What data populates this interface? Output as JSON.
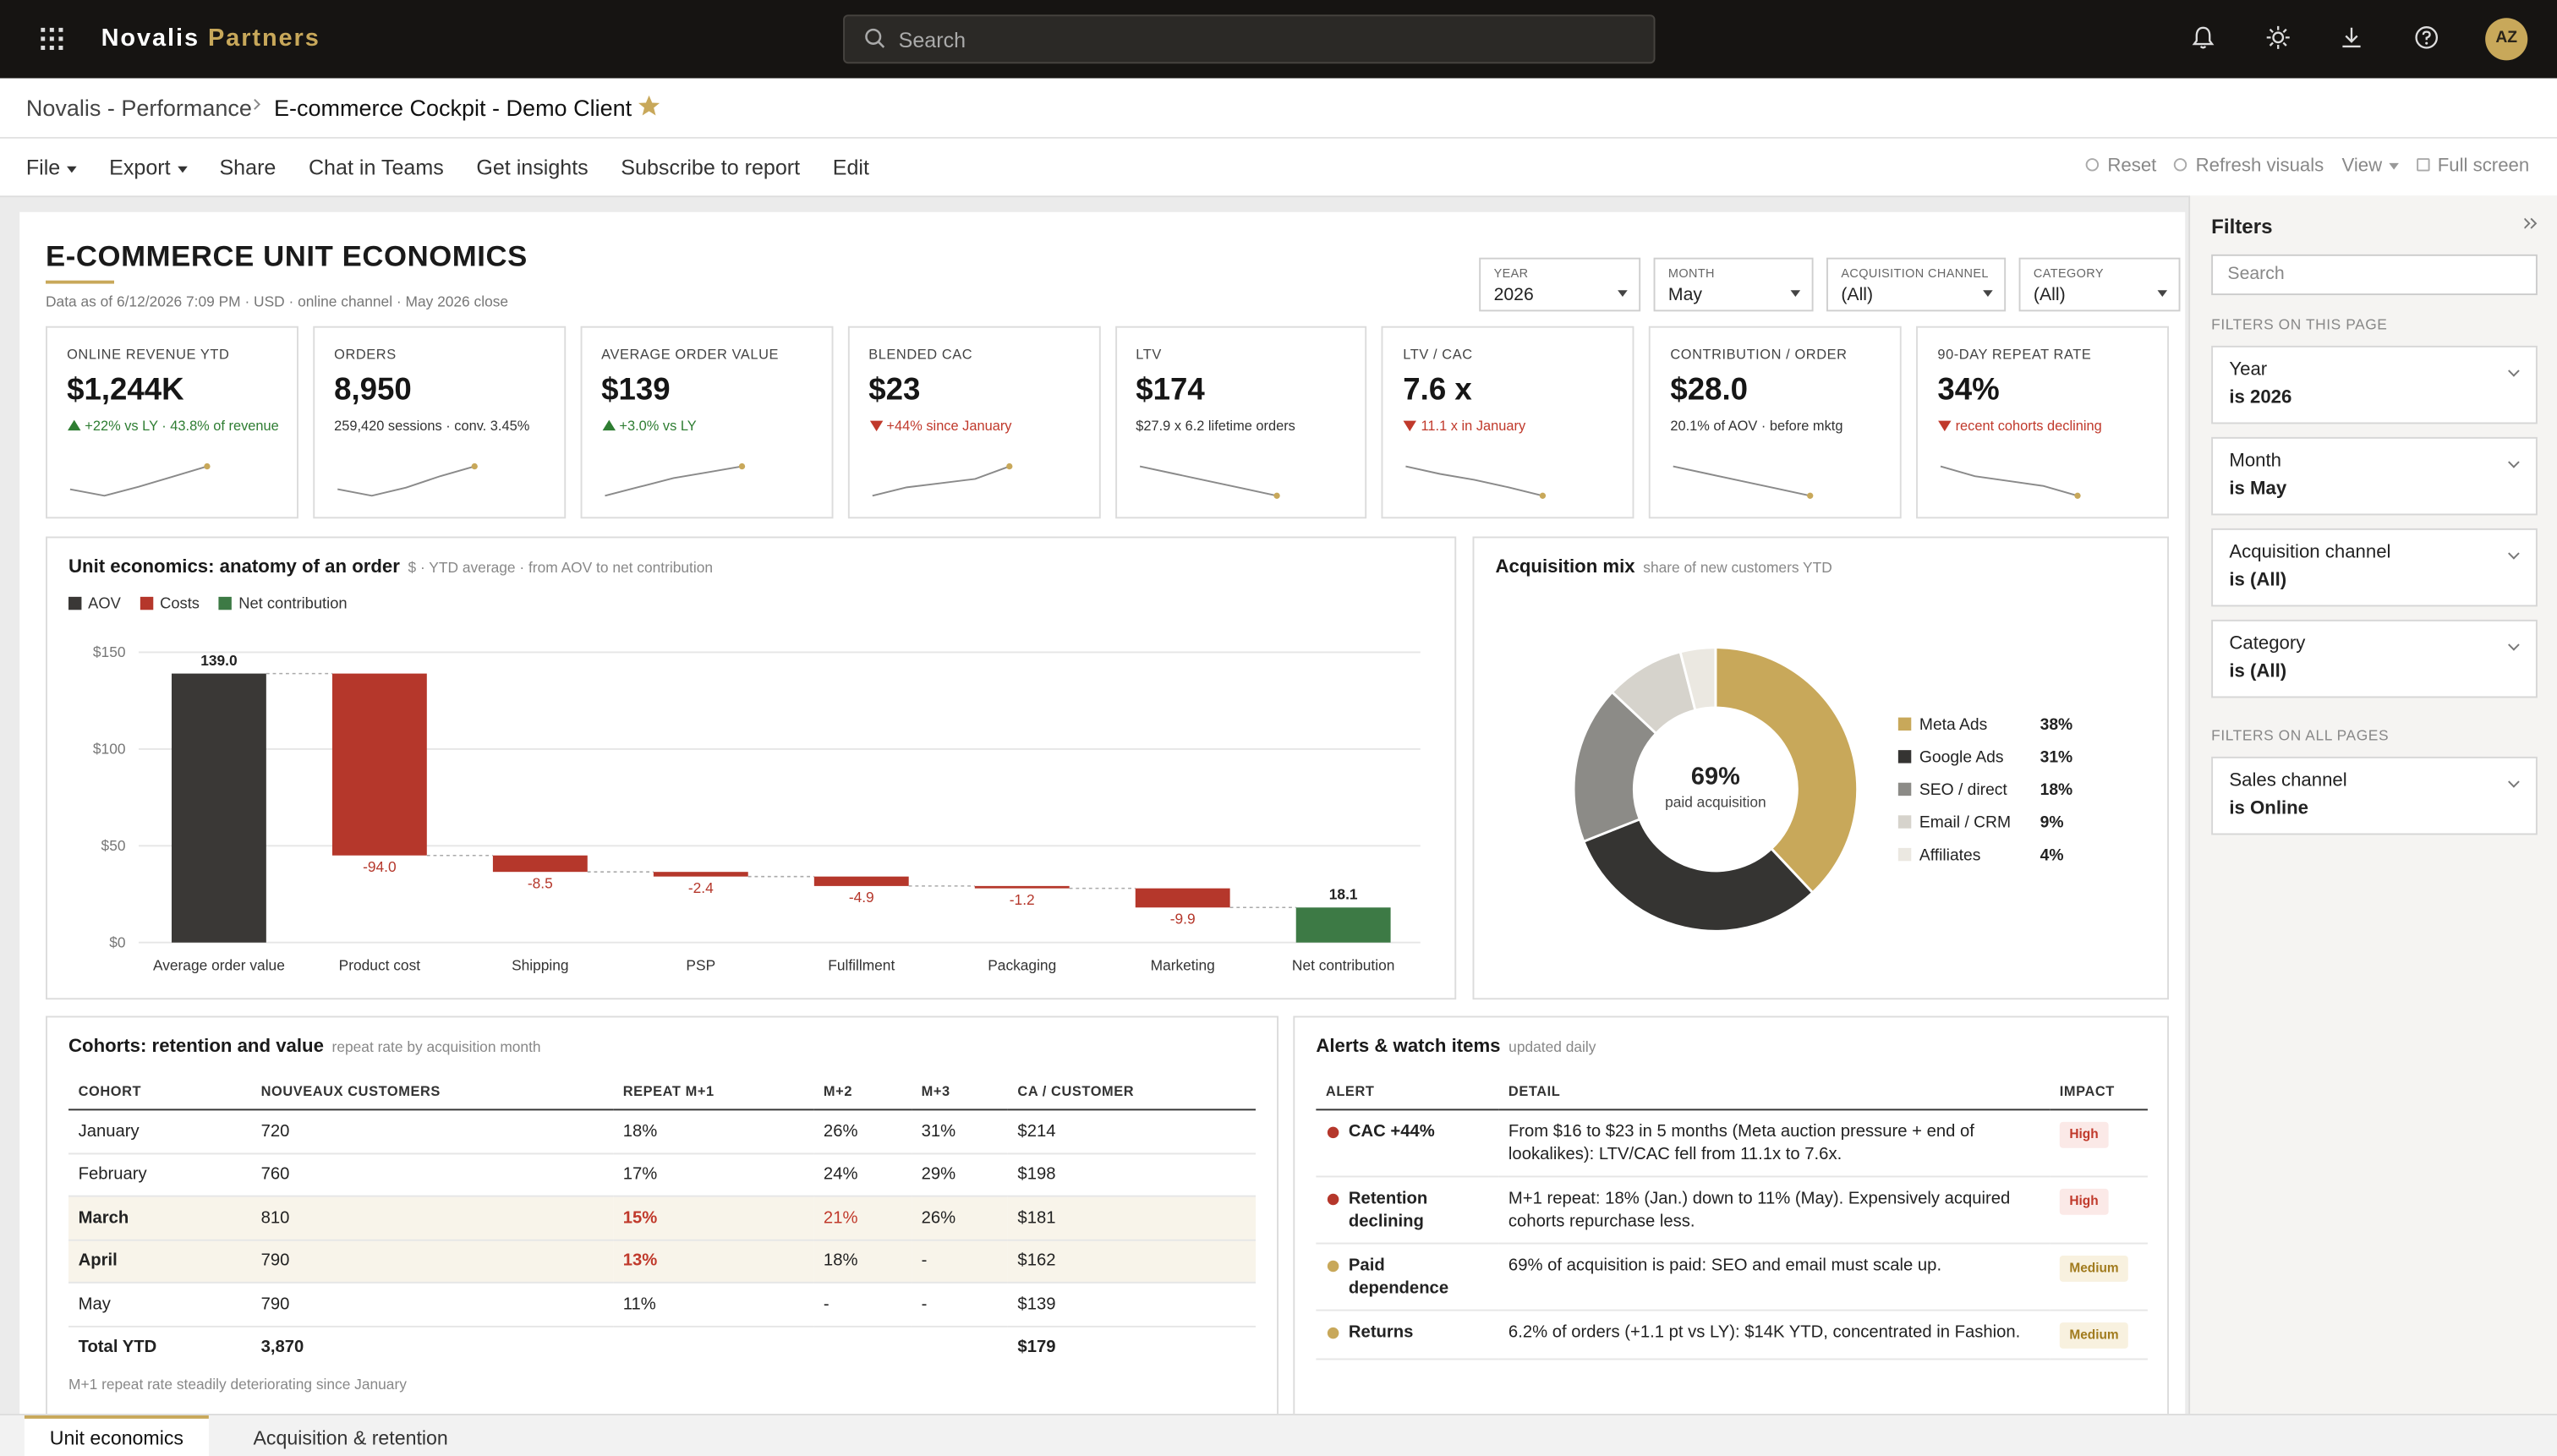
{
  "app": {
    "brand": "Novalis",
    "brand_accent": "Partners",
    "search": "Search",
    "avatar": "AZ"
  },
  "breadcrumb": {
    "parent": "Novalis - Performance",
    "current": "E-commerce Cockpit - Demo Client"
  },
  "toolbar": {
    "menu": [
      "File",
      "Export",
      "Share",
      "Chat in Teams",
      "Get insights",
      "Subscribe to report",
      "Edit"
    ],
    "actions": [
      "Reset",
      "Refresh visuals",
      "View",
      "Full screen"
    ]
  },
  "report": {
    "title": "E-COMMERCE UNIT ECONOMICS",
    "subtitle": "Data as of 6/12/2026 7:09 PM · USD · online channel · May 2026 close",
    "slicers": [
      {
        "label": "YEAR",
        "value": "2026"
      },
      {
        "label": "MONTH",
        "value": "May"
      },
      {
        "label": "ACQUISITION CHANNEL",
        "value": "(All)"
      },
      {
        "label": "CATEGORY",
        "value": "(All)"
      }
    ]
  },
  "kpis": [
    {
      "label": "ONLINE REVENUE YTD",
      "value": "$1,244K",
      "note": "+22% vs LY · 43.8% of revenue",
      "trend": "up",
      "spark": [
        40,
        35,
        42,
        50,
        58
      ]
    },
    {
      "label": "ORDERS",
      "value": "8,950",
      "note": "259,420 sessions · conv. 3.45%",
      "spark": [
        52,
        48,
        53,
        60,
        66
      ]
    },
    {
      "label": "AVERAGE ORDER VALUE",
      "value": "$139",
      "note": "+3.0% vs LY",
      "trend": "up",
      "spark": [
        130,
        133,
        136,
        138,
        140
      ]
    },
    {
      "label": "BLENDED CAC",
      "value": "$23",
      "note": "+44% since January",
      "trend": "down",
      "spark": [
        16,
        18,
        19,
        20,
        23
      ]
    },
    {
      "label": "LTV",
      "value": "$174",
      "note": "$27.9 x 6.2 lifetime orders",
      "spark": [
        190,
        186,
        182,
        178,
        174
      ]
    },
    {
      "label": "LTV / CAC",
      "value": "7.6 x",
      "note": "11.1 x in January",
      "trend": "down",
      "spark": [
        11.1,
        10.2,
        9.5,
        8.6,
        7.6
      ]
    },
    {
      "label": "CONTRIBUTION / ORDER",
      "value": "$28.0",
      "note": "20.1% of AOV · before mktg",
      "spark": [
        32,
        31,
        30,
        29,
        28
      ]
    },
    {
      "label": "90-DAY REPEAT RATE",
      "value": "34%",
      "note": "recent cohorts declining",
      "trend": "down",
      "spark": [
        40,
        38,
        37,
        36,
        34
      ]
    }
  ],
  "waterfall": {
    "type": "waterfall",
    "title": "Unit economics: anatomy of an order",
    "subtitle": "$ · YTD average · from AOV to net contribution",
    "legend": [
      {
        "name": "AOV",
        "color": "#3a3836"
      },
      {
        "name": "Costs",
        "color": "#b5372b"
      },
      {
        "name": "Net contribution",
        "color": "#3d7a45"
      }
    ],
    "categories": [
      "Average order value",
      "Product cost",
      "Shipping",
      "PSP",
      "Fulfillment",
      "Packaging",
      "Marketing",
      "Net contribution"
    ],
    "values": [
      139.0,
      -94.0,
      -8.5,
      -2.4,
      -4.9,
      -1.2,
      -9.9,
      18.1
    ],
    "value_labels": [
      "139.0",
      "-94.0",
      "-8.5",
      "-2.4",
      "-4.9",
      "-1.2",
      "-9.9",
      "18.1"
    ],
    "ylim": [
      0,
      150
    ],
    "yticks": [
      {
        "value": 0,
        "label": "$0"
      },
      {
        "value": 50,
        "label": "$50"
      },
      {
        "value": 100,
        "label": "$100"
      },
      {
        "value": 150,
        "label": "$150"
      }
    ],
    "grid": true
  },
  "donut": {
    "type": "pie",
    "title": "Acquisition mix",
    "subtitle": "share of new customers YTD",
    "center_value": "69%",
    "center_label": "paid acquisition",
    "categories": [
      "Meta Ads",
      "Google Ads",
      "SEO / direct",
      "Email / CRM",
      "Affiliates"
    ],
    "values": [
      38,
      31,
      18,
      9,
      4
    ],
    "value_labels": [
      "38%",
      "31%",
      "18%",
      "9%",
      "4%"
    ],
    "colors": [
      "#c8a85a",
      "#353432",
      "#8c8b87",
      "#d6d3cc",
      "#ebe8e1"
    ]
  },
  "cohorts": {
    "title": "Cohorts: retention and value",
    "subtitle": "repeat rate by acquisition month",
    "columns": [
      "COHORT",
      "NOUVEAUX CUSTOMERS",
      "REPEAT M+1",
      "M+2",
      "M+3",
      "CA / CUSTOMER"
    ],
    "rows": [
      [
        "January",
        "720",
        "18%",
        "26%",
        "31%",
        "$214"
      ],
      [
        "February",
        "760",
        "17%",
        "24%",
        "29%",
        "$198"
      ],
      [
        "March",
        "810",
        "15%",
        "21%",
        "26%",
        "$181"
      ],
      [
        "April",
        "790",
        "13%",
        "18%",
        "-",
        "$162"
      ],
      [
        "May",
        "790",
        "11%",
        "-",
        "-",
        "$139"
      ]
    ],
    "total": {
      "label": "Total YTD",
      "customers": "3,870",
      "ca": "$179"
    },
    "note": "M+1 repeat rate steadily deteriorating since January"
  },
  "alerts": {
    "title": "Alerts & watch items",
    "subtitle": "updated daily",
    "columns": [
      "ALERT",
      "DETAIL",
      "IMPACT"
    ],
    "rows": [
      {
        "alert": "CAC +44%",
        "detail": "From $16 to $23 in 5 months (Meta auction pressure + end of lookalikes): LTV/CAC fell from 11.1x to 7.6x.",
        "impact": "High"
      },
      {
        "alert": "Retention declining",
        "detail": "M+1 repeat: 18% (Jan.) down to 11% (May). Expensively acquired cohorts repurchase less.",
        "impact": "High"
      },
      {
        "alert": "Paid dependence",
        "detail": "69% of acquisition is paid: SEO and email must scale up.",
        "impact": "Medium"
      },
      {
        "alert": "Returns",
        "detail": "6.2% of orders (+1.1 pt vs LY): $14K YTD, concentrated in Fashion.",
        "impact": "Medium"
      }
    ]
  },
  "filters": {
    "title": "Filters",
    "search": "Search",
    "page_section": "FILTERS ON THIS PAGE",
    "page_filters": [
      {
        "name": "Year",
        "state": "is 2026"
      },
      {
        "name": "Month",
        "state": "is May"
      },
      {
        "name": "Acquisition channel",
        "state": "is (All)"
      },
      {
        "name": "Category",
        "state": "is (All)"
      }
    ],
    "all_section": "FILTERS ON ALL PAGES",
    "all_filters": [
      {
        "name": "Sales channel",
        "state": "is Online"
      }
    ]
  },
  "tabs": [
    "Unit economics",
    "Acquisition & retention"
  ]
}
